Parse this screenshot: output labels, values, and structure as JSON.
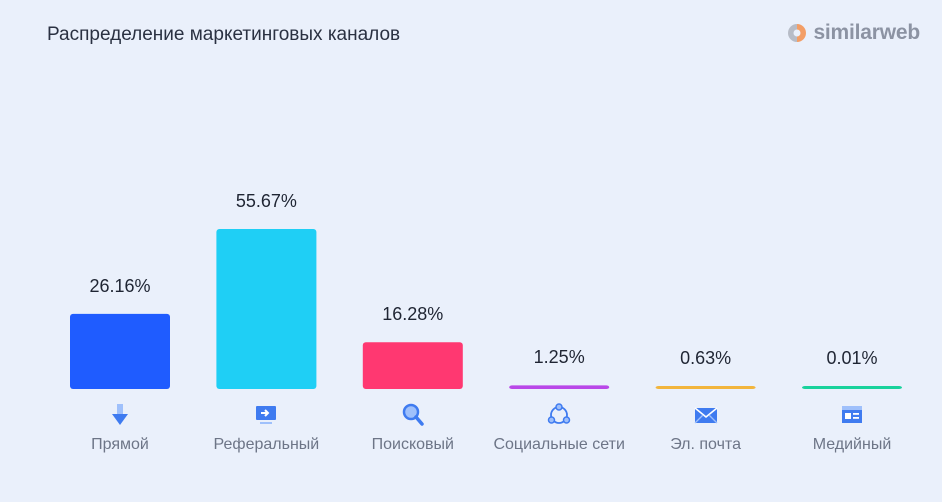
{
  "title": "Распределение маркетинговых каналов",
  "brand": {
    "name": "similarweb",
    "icon": "similarweb-logo-icon"
  },
  "chart_data": {
    "type": "bar",
    "title": "Распределение маркетинговых каналов",
    "categories": [
      "Прямой",
      "Реферальный",
      "Поисковый",
      "Социальные сети",
      "Эл. почта",
      "Медийный"
    ],
    "values": [
      26.16,
      55.67,
      16.28,
      1.25,
      0.63,
      0.01
    ],
    "value_labels": [
      "26.16%",
      "55.67%",
      "16.28%",
      "1.25%",
      "0.63%",
      "0.01%"
    ],
    "colors": [
      "#1f5cff",
      "#1fcff5",
      "#ff3871",
      "#b948e8",
      "#f2b53c",
      "#19d29c"
    ],
    "icons": [
      "arrow-down-icon",
      "monitor-arrow-icon",
      "magnifier-icon",
      "share-network-icon",
      "envelope-icon",
      "display-ad-icon"
    ],
    "unit": "%",
    "ylim": [
      0,
      100
    ],
    "grid": false,
    "legend": "none"
  }
}
